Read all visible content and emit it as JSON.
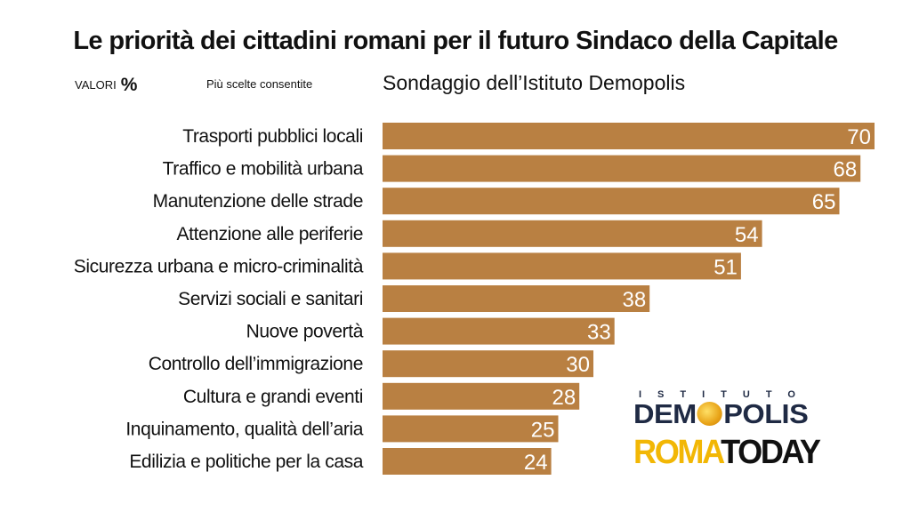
{
  "header": {
    "title": "Le priorità dei cittadini romani per il futuro Sindaco della Capitale",
    "values_label": "VALORI",
    "values_unit": "%",
    "multi_choice_note": "Più scelte consentite",
    "subtitle": "Sondaggio dell’Istituto Demopolis"
  },
  "chart_data": {
    "type": "bar",
    "orientation": "horizontal",
    "title": "Le priorità dei cittadini romani per il futuro Sindaco della Capitale",
    "subtitle": "Sondaggio dell’Istituto Demopolis",
    "xlabel": "",
    "ylabel": "",
    "unit": "%",
    "xlim": [
      0,
      70
    ],
    "grid": false,
    "bar_color": "#b98042",
    "value_label_color": "#ffffff",
    "categories": [
      "Trasporti pubblici locali",
      "Traffico e mobilità urbana",
      "Manutenzione delle strade",
      "Attenzione alle periferie",
      "Sicurezza urbana e micro-criminalità",
      "Servizi sociali e sanitari",
      "Nuove povertà",
      "Controllo dell’immigrazione",
      "Cultura e grandi eventi",
      "Inquinamento, qualità dell’aria",
      "Edilizia e politiche per la casa"
    ],
    "values": [
      70,
      68,
      65,
      54,
      51,
      38,
      33,
      30,
      28,
      25,
      24
    ]
  },
  "logos": {
    "istituto": "ISTITUTO",
    "demopolis_before": "DEM",
    "demopolis_after": "POLIS",
    "roma": "ROMA",
    "today": "TODAY",
    "accent_color": "#f2b705",
    "navy_color": "#1f2a44"
  }
}
